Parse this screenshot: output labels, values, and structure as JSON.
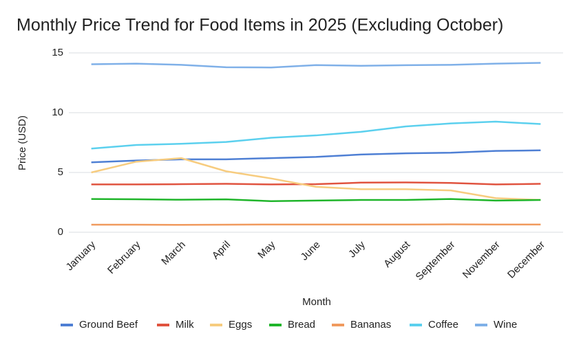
{
  "chart_data": {
    "type": "line",
    "title": "Monthly Price Trend for Food Items in 2025 (Excluding October)",
    "x_label": "Month",
    "y_label": "Price (USD)",
    "categories": [
      "January",
      "February",
      "March",
      "April",
      "May",
      "June",
      "July",
      "August",
      "September",
      "November",
      "December"
    ],
    "series": [
      {
        "name": "Ground Beef",
        "color": "#4e7fd4",
        "values": [
          5.85,
          6.0,
          6.1,
          6.1,
          6.2,
          6.3,
          6.5,
          6.6,
          6.65,
          6.8,
          6.85
        ]
      },
      {
        "name": "Milk",
        "color": "#e0533f",
        "values": [
          4.0,
          4.0,
          4.02,
          4.05,
          4.0,
          4.02,
          4.15,
          4.17,
          4.12,
          4.0,
          4.05
        ]
      },
      {
        "name": "Eggs",
        "color": "#f7cc7f",
        "values": [
          5.0,
          5.9,
          6.2,
          5.1,
          4.5,
          3.8,
          3.6,
          3.6,
          3.5,
          2.85,
          2.7
        ]
      },
      {
        "name": "Bread",
        "color": "#1fb52a",
        "values": [
          2.78,
          2.76,
          2.72,
          2.75,
          2.6,
          2.65,
          2.7,
          2.7,
          2.78,
          2.65,
          2.7
        ]
      },
      {
        "name": "Bananas",
        "color": "#f09a5e",
        "values": [
          0.63,
          0.63,
          0.62,
          0.63,
          0.65,
          0.65,
          0.65,
          0.65,
          0.66,
          0.65,
          0.65
        ]
      },
      {
        "name": "Coffee",
        "color": "#5bd0ee",
        "values": [
          7.0,
          7.3,
          7.4,
          7.55,
          7.9,
          8.1,
          8.4,
          8.85,
          9.1,
          9.25,
          9.05
        ]
      },
      {
        "name": "Wine",
        "color": "#7fb0e8",
        "values": [
          14.05,
          14.1,
          14.0,
          13.8,
          13.78,
          13.98,
          13.92,
          13.97,
          14.0,
          14.1,
          14.17
        ]
      }
    ],
    "ylim": [
      0,
      15
    ],
    "yticks": [
      0,
      5,
      10,
      15
    ],
    "grid": true
  }
}
